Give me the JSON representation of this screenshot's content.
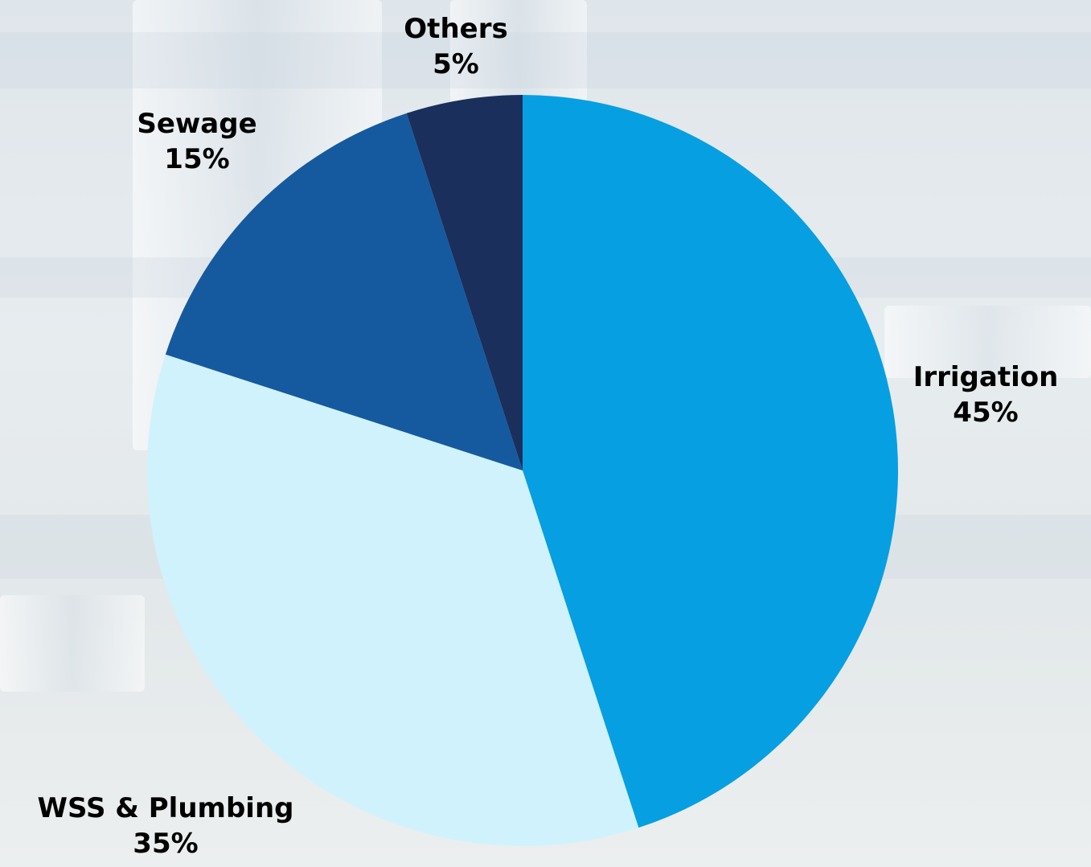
{
  "chart_data": {
    "type": "pie",
    "slices": [
      {
        "label": "Irrigation",
        "value": 45,
        "value_label": "45%",
        "color": "#069fe2"
      },
      {
        "label": "WSS & Plumbing",
        "value": 35,
        "value_label": "35%",
        "color": "#d0f2fd"
      },
      {
        "label": "Sewage",
        "value": 15,
        "value_label": "15%",
        "color": "#155a9f"
      },
      {
        "label": "Others",
        "value": 5,
        "value_label": "5%",
        "color": "#1b2f5c"
      }
    ],
    "start_angle": "12 o'clock",
    "direction": "clockwise",
    "legend": "none",
    "labels": "outside slices"
  }
}
